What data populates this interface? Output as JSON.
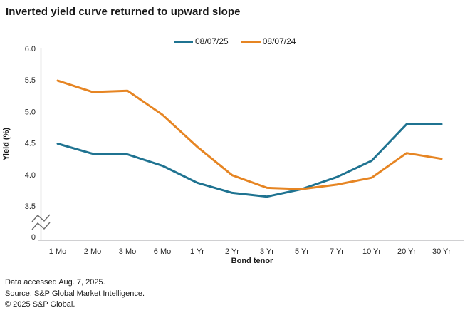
{
  "title": "Inverted yield curve returned to upward slope",
  "footer": {
    "line1": "Data accessed Aug. 7, 2025.",
    "line2": "Source: S&P Global Market Intelligence.",
    "line3": "© 2025 S&P Global."
  },
  "colors": {
    "series_teal": "#1F7391",
    "series_orange": "#E68523",
    "axis_line": "#B3B3B6",
    "tick_text": "#262626",
    "break_mark": "#6B6B6B"
  },
  "chart_data": {
    "type": "line",
    "title": "Inverted yield curve returned to upward slope",
    "xlabel": "Bond tenor",
    "ylabel": "Yield (%)",
    "categories": [
      "1 Mo",
      "2 Mo",
      "3 Mo",
      "6 Mo",
      "1 Yr",
      "2 Yr",
      "3 Yr",
      "5 Yr",
      "7 Yr",
      "10 Yr",
      "20 Yr",
      "30 Yr"
    ],
    "series": [
      {
        "name": "08/07/25",
        "color": "#1F7391",
        "values": [
          4.49,
          4.33,
          4.32,
          4.14,
          3.87,
          3.71,
          3.65,
          3.77,
          3.96,
          4.22,
          4.8,
          4.8
        ]
      },
      {
        "name": "08/07/24",
        "color": "#E68523",
        "values": [
          5.49,
          5.31,
          5.33,
          4.95,
          4.44,
          3.99,
          3.79,
          3.77,
          3.84,
          3.95,
          4.34,
          4.25
        ]
      }
    ],
    "y_axis": {
      "ticks": [
        "6.0",
        "5.5",
        "5.0",
        "4.5",
        "4.0",
        "3.5"
      ],
      "tick_values": [
        6.0,
        5.5,
        5.0,
        4.5,
        4.0,
        3.5
      ],
      "axis_break": true,
      "break_label": "0",
      "range_top": 6.0,
      "range_bottom": 3.5
    },
    "legend_position": "top",
    "grid": false
  }
}
